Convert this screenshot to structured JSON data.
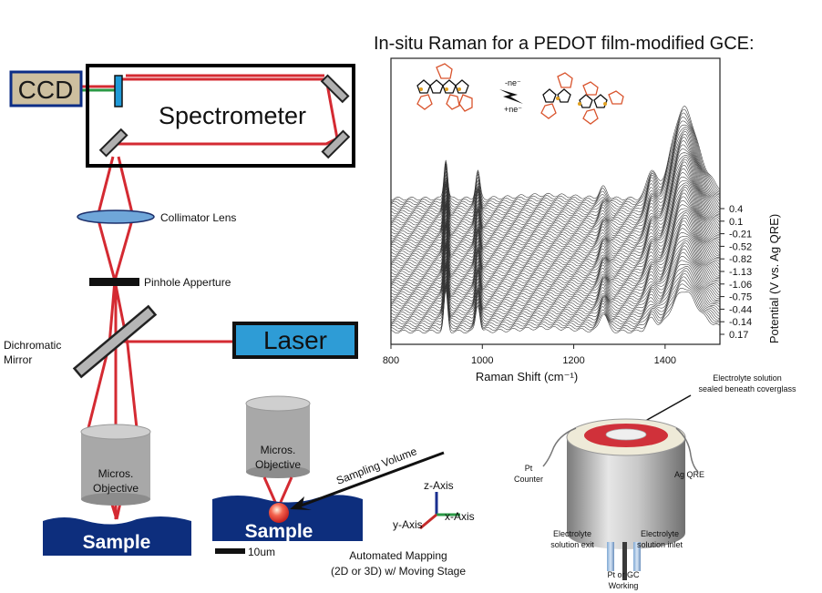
{
  "title": "In-situ Raman for a PEDOT film-modified GCE:",
  "colors": {
    "beam": "#d42a32",
    "ccd_fill": "#cdbf9f",
    "ccd_border": "#0c2d86",
    "laser_fill": "#2e9cd6",
    "sample_fill": "#0d2e7d",
    "lens_fill": "#6fa6d9",
    "grating_blue": "#1f9ad8",
    "axis_z": "#1a2f8f",
    "axis_x": "#2a9a45",
    "axis_y": "#c52a2a",
    "cell_ring": "#d0313a"
  },
  "setup": {
    "ccd": "CCD",
    "spectrometer": "Spectrometer",
    "collimator_lens": "Collimator Lens",
    "pinhole": "Pinhole Apperture",
    "dichromatic_line1": "Dichromatic",
    "dichromatic_line2": "Mirror",
    "laser": "Laser",
    "objective_line1": "Micros.",
    "objective_line2": "Objective",
    "sample": "Sample"
  },
  "mapping": {
    "objective_line1": "Micros.",
    "objective_line2": "Objective",
    "sampling_volume": "Sampling Volume",
    "sample": "Sample",
    "scale_bar": "10um",
    "caption_line1": "Automated Mapping",
    "caption_line2": "(2D or 3D) w/ Moving Stage",
    "z_axis": "z-Axis",
    "x_axis": "x-Axis",
    "y_axis": "y-Axis"
  },
  "reaction": {
    "minus_ne": "-ne⁻",
    "plus_ne": "+ne⁻"
  },
  "cell": {
    "electrolyte_line1": "Electrolyte solution",
    "electrolyte_line2": "sealed beneath coverglass",
    "counter_line1": "Pt",
    "counter_line2": "Counter",
    "ref": "Ag QRE",
    "exit_line1": "Electrolyte",
    "exit_line2": "solution exit",
    "inlet_line1": "Electrolyte",
    "inlet_line2": "solution inlet",
    "working_line1": "Pt or GC",
    "working_line2": "Working"
  },
  "chart_data": {
    "type": "line",
    "title": "In-situ Raman for a PEDOT film-modified GCE:",
    "xlabel": "Raman Shift (cm⁻¹)",
    "ylabel": "Potential (V vs. Ag QRE)",
    "xlim": [
      800,
      1520
    ],
    "x_ticks": [
      800,
      1000,
      1200,
      1400
    ],
    "potential_labels": [
      "0.4",
      "0.1",
      "-0.21",
      "-0.52",
      "-0.82",
      "-1.13",
      "-1.06",
      "-0.75",
      "-0.44",
      "-0.14",
      "0.17"
    ],
    "trace_count": 60,
    "peaks_cm1": [
      920,
      990,
      1265,
      1370,
      1440
    ],
    "grid": false,
    "legend": "none"
  }
}
